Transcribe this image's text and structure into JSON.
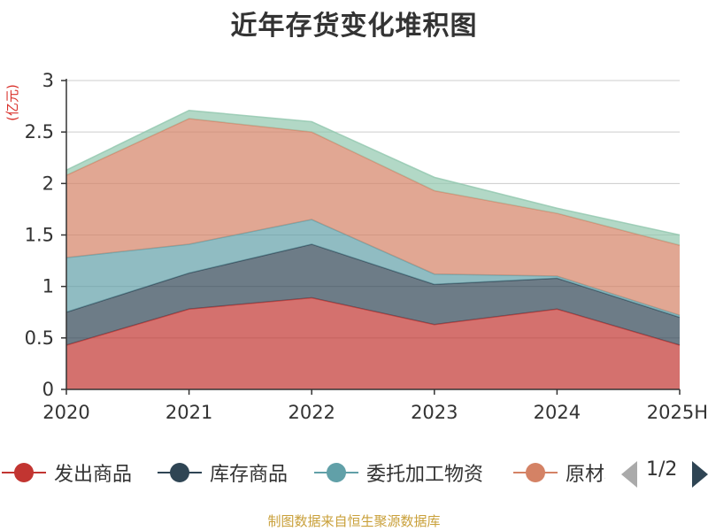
{
  "title": "近年存货变化堆积图",
  "source_note": "制图数据来自恒生聚源数据库",
  "chart_data": {
    "type": "area",
    "stacked": true,
    "title": "近年存货变化堆积图",
    "unit": "(亿元)",
    "categories": [
      "2020",
      "2021",
      "2022",
      "2023",
      "2024",
      "2025H"
    ],
    "ylim": [
      0,
      3
    ],
    "yticks": [
      0,
      0.5,
      1,
      1.5,
      2,
      2.5,
      3
    ],
    "grid": true,
    "series": [
      {
        "name": "发出商品",
        "color": "#c23531",
        "values": [
          0.43,
          0.78,
          0.89,
          0.63,
          0.78,
          0.43
        ]
      },
      {
        "name": "库存商品",
        "color": "#2f4554",
        "values": [
          0.32,
          0.35,
          0.52,
          0.39,
          0.3,
          0.27
        ]
      },
      {
        "name": "委托加工物资",
        "color": "#61a0a8",
        "values": [
          0.53,
          0.28,
          0.24,
          0.1,
          0.02,
          0.02
        ]
      },
      {
        "name": "原材料",
        "color": "#d48265",
        "values": [
          0.8,
          1.22,
          0.85,
          0.81,
          0.61,
          0.68
        ]
      },
      {
        "name": "",
        "color": "#91c7ae",
        "values": [
          0.05,
          0.08,
          0.1,
          0.13,
          0.05,
          0.1
        ]
      }
    ]
  },
  "legend": {
    "page_text": "1/2",
    "items": [
      {
        "label": "发出商品",
        "color": "#c23531"
      },
      {
        "label": "库存商品",
        "color": "#2f4554"
      },
      {
        "label": "委托加工物资",
        "color": "#61a0a8"
      },
      {
        "label": "原材料",
        "color": "#d48265"
      }
    ]
  }
}
